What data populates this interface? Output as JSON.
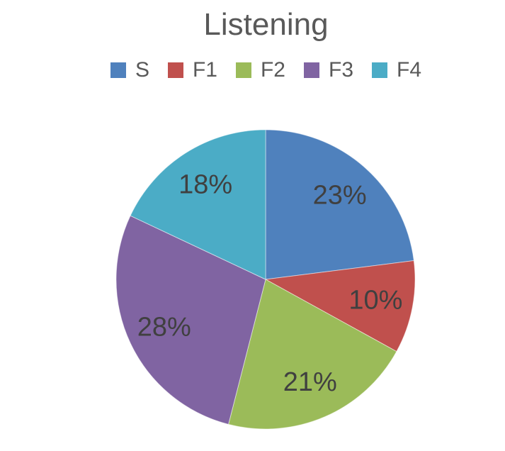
{
  "chart_data": {
    "type": "pie",
    "title": "Listening",
    "categories": [
      "S",
      "F1",
      "F2",
      "F3",
      "F4"
    ],
    "values": [
      23,
      10,
      21,
      28,
      18
    ],
    "labels": [
      "23%",
      "10%",
      "21%",
      "28%",
      "18%"
    ],
    "unit": "%",
    "colors": [
      "#4F81BD",
      "#C0504D",
      "#9BBB59",
      "#8064A2",
      "#4BACC6"
    ],
    "start_angle_deg": 0,
    "direction": "clockwise",
    "legend_position": "top",
    "title_color": "#595959",
    "legend_text_color": "#595959",
    "label_color": "#404040",
    "background_color": "#FFFFFF"
  }
}
